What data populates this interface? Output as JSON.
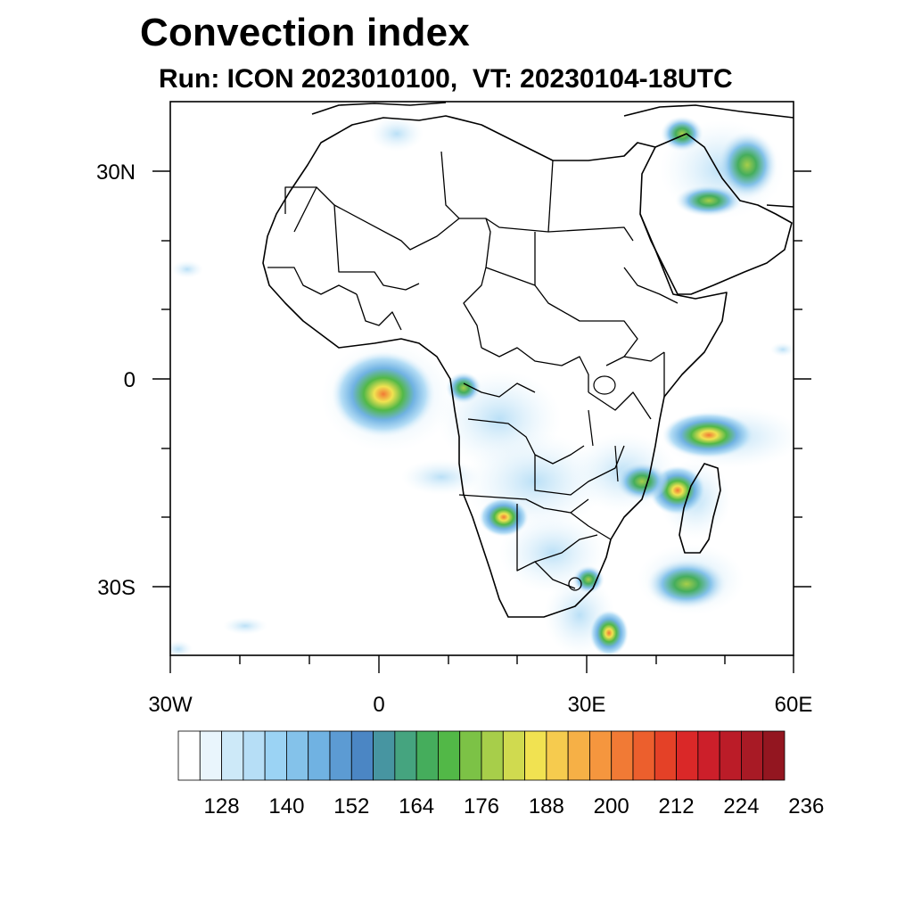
{
  "title": "Convection index",
  "subtitle": "Run: ICON 2023010100,  VT: 20230104-18UTC",
  "map": {
    "lon_range": [
      -30,
      60
    ],
    "lat_range": [
      -40,
      40
    ],
    "x_tick_labels": [
      "30W",
      "0",
      "30E",
      "60E"
    ],
    "y_tick_labels": [
      "30N",
      "0",
      "30S"
    ]
  },
  "colorbar": {
    "labels": [
      "128",
      "140",
      "152",
      "164",
      "176",
      "188",
      "200",
      "212",
      "224",
      "236"
    ],
    "colors": [
      "#ffffff",
      "#e9f5fc",
      "#cde9f8",
      "#b6def6",
      "#9bd3f4",
      "#84c2ea",
      "#70b2e2",
      "#5c9bd3",
      "#4b86c4",
      "#4795a1",
      "#45a47f",
      "#45ad5c",
      "#52b847",
      "#7cc246",
      "#a7ce4a",
      "#d0da4f",
      "#f1e251",
      "#f6cb4e",
      "#f6b046",
      "#f5963e",
      "#f17a35",
      "#ec5f2d",
      "#e44127",
      "#da2828",
      "#cc1f2a",
      "#bb1c28",
      "#a81a25",
      "#931620"
    ]
  },
  "convection_cells": [
    {
      "lon": 2,
      "lat": -1.5,
      "level": 0.85
    },
    {
      "lon": 40,
      "lat": -16,
      "level": 0.75
    },
    {
      "lon": 47,
      "lat": -8,
      "level": 0.7
    },
    {
      "lon": 45,
      "lat": -27,
      "level": 0.6
    },
    {
      "lon": 36,
      "lat": -37,
      "level": 0.7
    },
    {
      "lon": 17,
      "lat": -19,
      "level": 0.55
    },
    {
      "lon": 54,
      "lat": 28,
      "level": 0.6
    },
    {
      "lon": 46,
      "lat": 24,
      "level": 0.45
    },
    {
      "lon": 47,
      "lat": 34,
      "level": 0.35
    }
  ]
}
